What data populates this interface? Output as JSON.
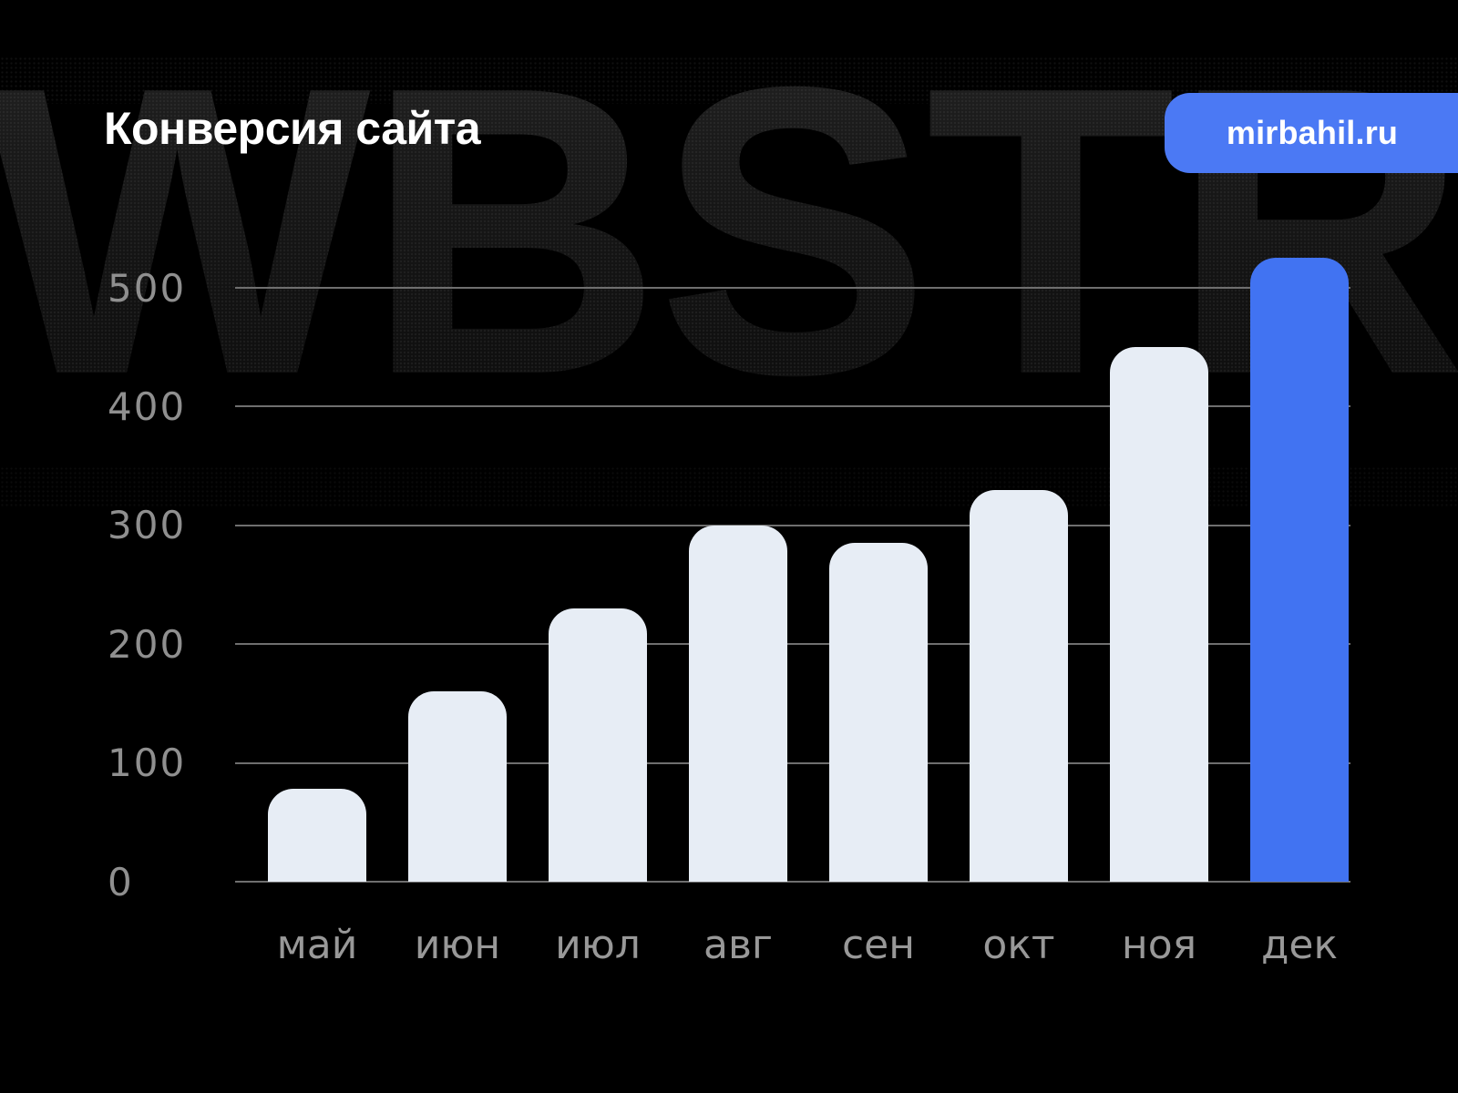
{
  "page": {
    "title": "Конверсия сайта",
    "watermark": "WBSTR",
    "badge": {
      "label": "mirbahil.ru",
      "color": "#4b79f4"
    },
    "colors": {
      "background": "#000000",
      "title_text": "#ffffff",
      "axis_text": "#8f8f8f",
      "gridline": "#6f6f6f"
    }
  },
  "chart_data": {
    "type": "bar",
    "title": "Конверсия сайта",
    "categories": [
      "май",
      "июн",
      "июл",
      "авг",
      "сен",
      "окт",
      "ноя",
      "дек"
    ],
    "values": [
      78,
      160,
      230,
      300,
      285,
      330,
      450,
      525
    ],
    "highlight_index": 7,
    "highlight_category": "дек",
    "bar_color": "#e7edf5",
    "highlight_color": "#4173f2",
    "xlabel": "",
    "ylabel": "",
    "ylim": [
      0,
      500
    ],
    "yticks": [
      0,
      100,
      200,
      300,
      400,
      500
    ],
    "grid": true,
    "legend": false
  }
}
